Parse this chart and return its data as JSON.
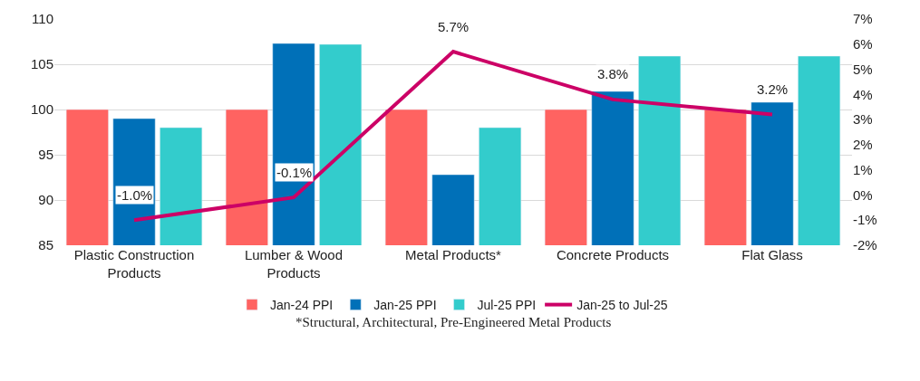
{
  "chart_data": {
    "type": "bar",
    "categories": [
      "Plastic Construction Products",
      "Lumber & Wood Products",
      "Metal Products*",
      "Concrete Products",
      "Flat Glass"
    ],
    "series": [
      {
        "name": "Jan-24 PPI",
        "color": "#ff6361",
        "values": [
          100,
          100,
          100,
          100,
          100
        ]
      },
      {
        "name": "Jan-25 PPI",
        "color": "#0070b8",
        "values": [
          99.0,
          107.3,
          92.8,
          102.0,
          100.8
        ]
      },
      {
        "name": "Jul-25 PPI",
        "color": "#33cccc",
        "values": [
          98.0,
          107.2,
          98.0,
          105.9,
          105.9
        ]
      },
      {
        "name": "Jan-25 to Jul-25",
        "type": "line",
        "axis": "y2",
        "color": "#cc0066",
        "values": [
          -1.0,
          -0.1,
          5.7,
          3.8,
          3.2
        ],
        "value_labels": [
          "-1.0%",
          "-0.1%",
          "5.7%",
          "3.8%",
          "3.2%"
        ]
      }
    ],
    "ylim": [
      85,
      110
    ],
    "yticks": [
      85,
      90,
      95,
      100,
      105,
      110
    ],
    "y2lim": [
      -2,
      7
    ],
    "y2ticks": [
      {
        "value": -2,
        "label": "-2%"
      },
      {
        "value": -1,
        "label": "-1%"
      },
      {
        "value": 0,
        "label": "0%"
      },
      {
        "value": 1,
        "label": "1%"
      },
      {
        "value": 2,
        "label": "2%"
      },
      {
        "value": 3,
        "label": "3%"
      },
      {
        "value": 4,
        "label": "4%"
      },
      {
        "value": 5,
        "label": "5%"
      },
      {
        "value": 6,
        "label": "6%"
      },
      {
        "value": 7,
        "label": "7%"
      }
    ],
    "grid": "y",
    "legend": "bottom",
    "annotations": [
      "*Structural, Architectural, Pre-Engineered Metal Products"
    ]
  }
}
